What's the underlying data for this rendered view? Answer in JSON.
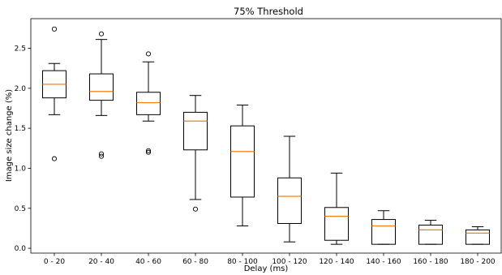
{
  "chart_data": {
    "type": "box",
    "title": "75% Threshold",
    "xlabel": "Delay (ms)",
    "ylabel": "Image size change (%)",
    "ylim": [
      -0.06,
      2.87
    ],
    "yticks": [
      0.0,
      0.5,
      1.0,
      1.5,
      2.0,
      2.5
    ],
    "grid": false,
    "categories": [
      "0 - 20",
      "20 - 40",
      "40 - 60",
      "60 - 80",
      "80 - 100",
      "100 - 120",
      "120 - 140",
      "140 - 160",
      "160 - 180",
      "180 - 200"
    ],
    "boxes": [
      {
        "whisker_low": 1.67,
        "q1": 1.88,
        "median": 2.05,
        "q3": 2.22,
        "whisker_high": 2.31,
        "outliers": [
          1.12,
          2.74
        ]
      },
      {
        "whisker_low": 1.66,
        "q1": 1.85,
        "median": 1.96,
        "q3": 2.18,
        "whisker_high": 2.61,
        "outliers": [
          1.15,
          1.18,
          2.68
        ]
      },
      {
        "whisker_low": 1.59,
        "q1": 1.67,
        "median": 1.82,
        "q3": 1.95,
        "whisker_high": 2.33,
        "outliers": [
          1.2,
          1.22,
          2.43
        ]
      },
      {
        "whisker_low": 0.61,
        "q1": 1.23,
        "median": 1.59,
        "q3": 1.7,
        "whisker_high": 1.91,
        "outliers": [
          0.49
        ]
      },
      {
        "whisker_low": 0.28,
        "q1": 0.64,
        "median": 1.21,
        "q3": 1.53,
        "whisker_high": 1.79,
        "outliers": []
      },
      {
        "whisker_low": 0.08,
        "q1": 0.31,
        "median": 0.65,
        "q3": 0.88,
        "whisker_high": 1.4,
        "outliers": []
      },
      {
        "whisker_low": 0.05,
        "q1": 0.1,
        "median": 0.4,
        "q3": 0.51,
        "whisker_high": 0.94,
        "outliers": []
      },
      {
        "whisker_low": 0.05,
        "q1": 0.05,
        "median": 0.28,
        "q3": 0.36,
        "whisker_high": 0.47,
        "outliers": []
      },
      {
        "whisker_low": 0.05,
        "q1": 0.05,
        "median": 0.23,
        "q3": 0.29,
        "whisker_high": 0.35,
        "outliers": []
      },
      {
        "whisker_low": 0.05,
        "q1": 0.05,
        "median": 0.19,
        "q3": 0.23,
        "whisker_high": 0.27,
        "outliers": []
      }
    ],
    "colors": {
      "box": "#000000",
      "median": "#ff7f0e"
    }
  }
}
